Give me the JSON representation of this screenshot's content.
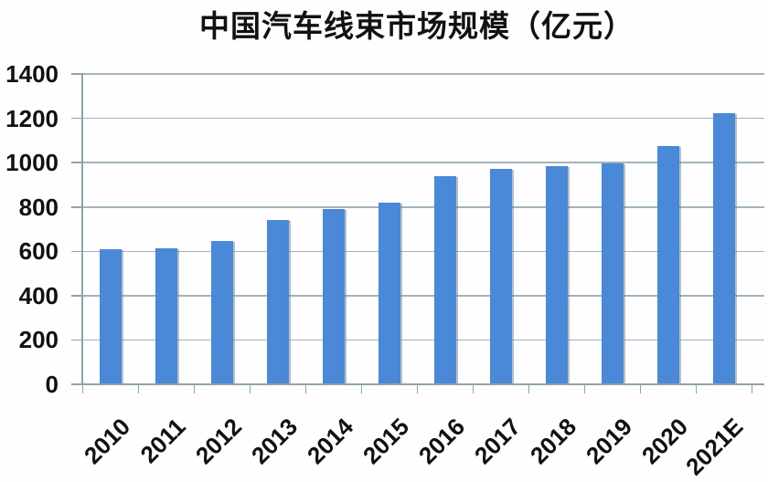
{
  "chart_data": {
    "type": "bar",
    "title": "中国汽车线束市场规模（亿元）",
    "categories": [
      "2010",
      "2011",
      "2012",
      "2013",
      "2014",
      "2015",
      "2016",
      "2017",
      "2018",
      "2019",
      "2020",
      "2021E"
    ],
    "values": [
      610,
      613,
      645,
      740,
      792,
      818,
      938,
      970,
      985,
      995,
      1075,
      1225
    ],
    "ylim": [
      0,
      1400
    ],
    "yticks": [
      0,
      200,
      400,
      600,
      800,
      1000,
      1200,
      1400
    ],
    "xlabel": "",
    "ylabel": "",
    "legend": "none",
    "grid": "horizontal-major",
    "x_label_rotation_deg": -45,
    "colors": {
      "bar": "#4a88d8",
      "bar_edge_shadow": "rgba(100,118,135,0.45)",
      "gridline": "#a3b3bc",
      "axis": "#8fa2ae",
      "text": "#111111",
      "background": "#fefefe"
    }
  }
}
